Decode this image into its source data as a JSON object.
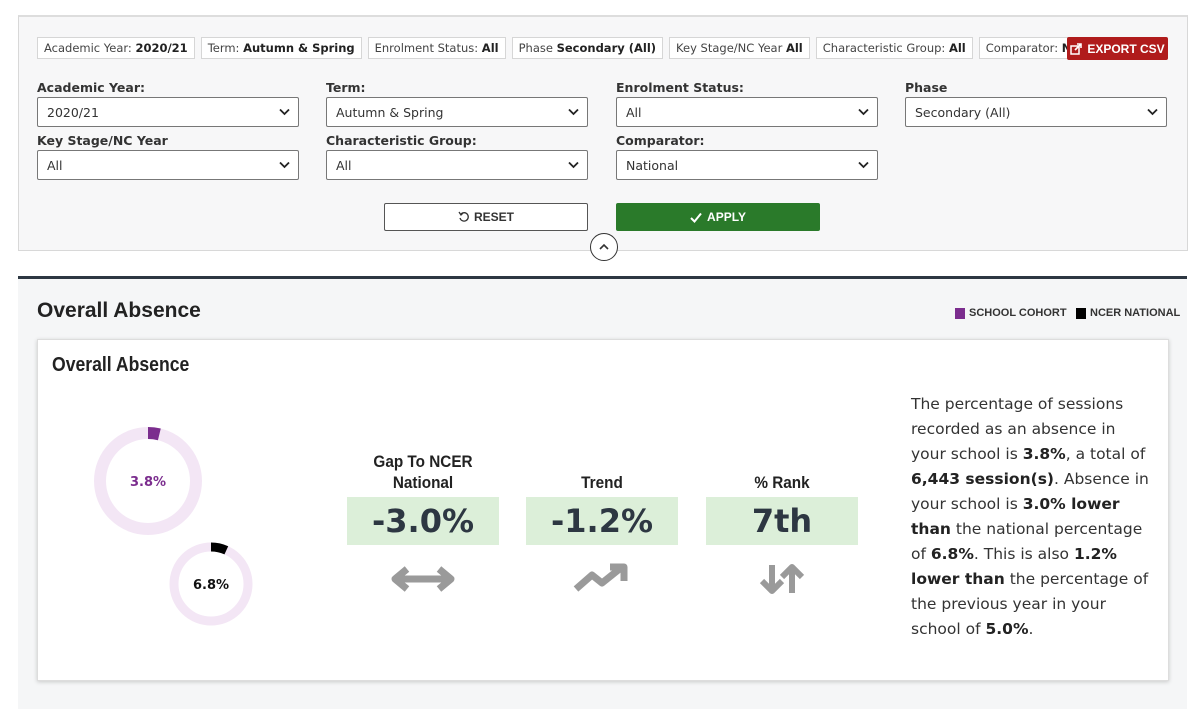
{
  "filter_tags": [
    {
      "label": "Academic Year:",
      "value": "2020/21"
    },
    {
      "label": "Term:",
      "value": "Autumn & Spring"
    },
    {
      "label": "Enrolment Status:",
      "value": "All"
    },
    {
      "label": "Phase",
      "value": "Secondary (All)"
    },
    {
      "label": "Key Stage/NC Year",
      "value": "All"
    },
    {
      "label": "Characteristic Group:",
      "value": "All"
    },
    {
      "label": "Comparator:",
      "value": "National"
    }
  ],
  "export_button": "EXPORT CSV",
  "filters": [
    {
      "label": "Academic Year:",
      "value": "2020/21"
    },
    {
      "label": "Term:",
      "value": "Autumn & Spring"
    },
    {
      "label": "Enrolment Status:",
      "value": "All"
    },
    {
      "label": "Phase",
      "value": "Secondary (All)"
    },
    {
      "label": "Key Stage/NC Year",
      "value": "All"
    },
    {
      "label": "Characteristic Group:",
      "value": "All"
    },
    {
      "label": "Comparator:",
      "value": "National"
    }
  ],
  "reset_button": "RESET",
  "apply_button": "APPLY",
  "section": {
    "title": "Overall Absence",
    "legend": [
      {
        "name": "SCHOOL COHORT",
        "color": "#7b2d8e"
      },
      {
        "name": "NCER NATIONAL",
        "color": "#000000"
      }
    ],
    "card": {
      "title": "Overall Absence",
      "donuts": [
        {
          "value": 3.8,
          "value_label": "3.8%",
          "color": "#7b2d8e",
          "label_color": "#7b2d8e"
        },
        {
          "value": 6.8,
          "value_label": "6.8%",
          "color": "#000000",
          "label_color": "#111111"
        }
      ],
      "metrics": [
        {
          "label": "Gap To NCER National",
          "value": "-3.0%"
        },
        {
          "label": "Trend",
          "value": "-1.2%"
        },
        {
          "label": "% Rank",
          "value": "7th"
        }
      ],
      "description": [
        {
          "text": "The percentage of sessions recorded as an absence in your school is ",
          "bold": false
        },
        {
          "text": "3.8%",
          "bold": true
        },
        {
          "text": ", a total of ",
          "bold": false
        },
        {
          "text": "6,443 session(s)",
          "bold": true
        },
        {
          "text": ". Absence in your school is ",
          "bold": false
        },
        {
          "text": "3.0% lower than",
          "bold": true
        },
        {
          "text": " the national percentage of ",
          "bold": false
        },
        {
          "text": "6.8%",
          "bold": true
        },
        {
          "text": ". This is also ",
          "bold": false
        },
        {
          "text": "1.2% lower than",
          "bold": true
        },
        {
          "text": " the percentage of the previous year in your school of ",
          "bold": false
        },
        {
          "text": "5.0%",
          "bold": true
        },
        {
          "text": ".",
          "bold": false
        }
      ]
    }
  }
}
